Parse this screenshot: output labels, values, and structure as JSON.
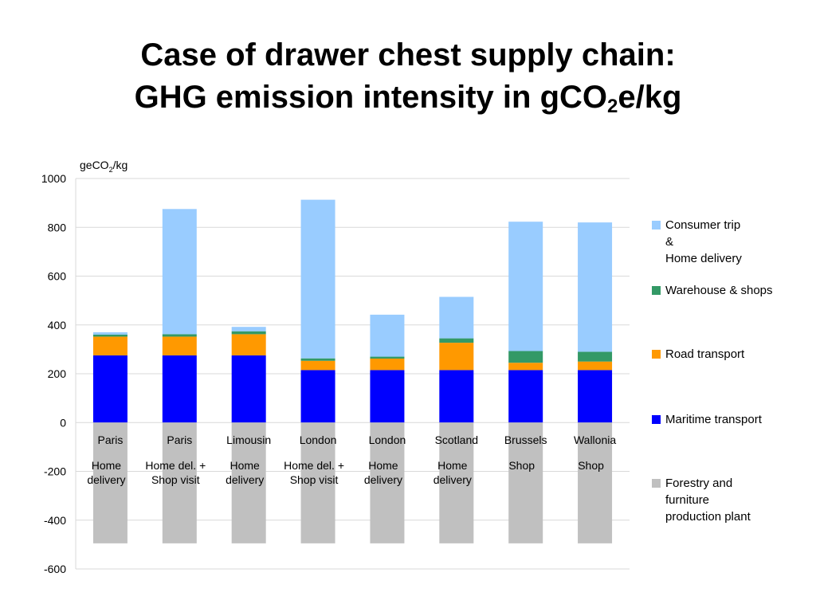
{
  "title_line1": "Case of drawer chest supply chain:",
  "title_line2_main": "GHG emission intensity in gCO",
  "title_line2_sub": "2",
  "title_line2_end": "e/kg",
  "ylabel_main": "geCO",
  "ylabel_sub": "2",
  "ylabel_end": "/kg",
  "colors": {
    "maritime": "#0000ff",
    "road": "#ff9900",
    "warehouse": "#339966",
    "consumer": "#99ccff",
    "forestry": "#c0c0c0"
  },
  "chart_data": {
    "type": "bar",
    "stacked": true,
    "categories": [
      "Paris",
      "Paris",
      "Limousin",
      "London",
      "London",
      "Scotland",
      "Brussels",
      "Wallonia"
    ],
    "category_sublabels": [
      "Home\ndelivery",
      "Home del. +\nShop visit",
      "Home\ndelivery",
      "Home del. +\nShop visit",
      "Home\ndelivery",
      "Home\ndelivery",
      "Shop",
      "Shop"
    ],
    "series": [
      {
        "name": "Maritime transport",
        "color_key": "maritime",
        "values": [
          275,
          275,
          275,
          215,
          215,
          215,
          215,
          215
        ]
      },
      {
        "name": "Road transport",
        "color_key": "road",
        "values": [
          77,
          77,
          87,
          38,
          47,
          112,
          30,
          35
        ]
      },
      {
        "name": "Warehouse & shops",
        "color_key": "warehouse",
        "values": [
          8,
          10,
          12,
          10,
          8,
          18,
          48,
          40
        ]
      },
      {
        "name": "Consumer trip\n&\nHome delivery",
        "color_key": "consumer",
        "values": [
          10,
          513,
          18,
          650,
          172,
          170,
          530,
          530
        ]
      },
      {
        "name": "Forestry and\nfurniture\nproduction plant",
        "color_key": "forestry",
        "values": [
          -495,
          -495,
          -495,
          -495,
          -495,
          -495,
          -495,
          -495
        ]
      }
    ],
    "ylim": [
      -600,
      1000
    ],
    "yticks": [
      1000,
      800,
      600,
      400,
      200,
      0,
      -200,
      -400,
      -600
    ],
    "grid": true,
    "legend_position": "right"
  }
}
